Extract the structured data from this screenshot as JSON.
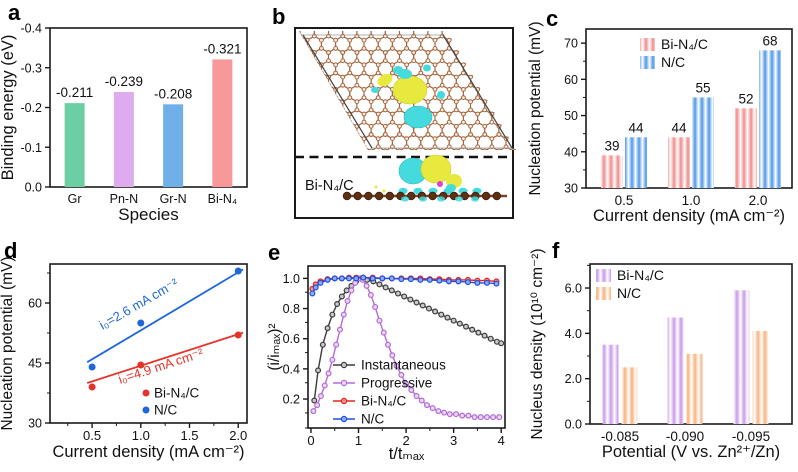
{
  "figure": {
    "panels": [
      {
        "id": "a",
        "letter": "a"
      },
      {
        "id": "b",
        "letter": "b"
      },
      {
        "id": "c",
        "letter": "c"
      },
      {
        "id": "d",
        "letter": "d"
      },
      {
        "id": "e",
        "letter": "e"
      },
      {
        "id": "f",
        "letter": "f"
      }
    ]
  },
  "structure_b": {
    "label": "Bi-N₄/C",
    "lattice_color": "#A5673F",
    "atom_fill": "#FBEDE2",
    "dark_atom": "#5C3014",
    "bond_color": "#7A4426",
    "blob_yellow": "#E8E93F",
    "blob_cyan": "#45DBDE",
    "blob_magenta": "#E040D0",
    "frame_color": "#1a1a1a"
  },
  "chart_data": [
    {
      "panel": "a",
      "type": "bar",
      "ylabel": "Binding energy (eV)",
      "xlabel": "Species",
      "categories": [
        "Gr",
        "Pn-N",
        "Gr-N",
        "Bi-N₄"
      ],
      "values": [
        -0.211,
        -0.239,
        -0.208,
        -0.321
      ],
      "value_labels": [
        "-0.211",
        "-0.239",
        "-0.208",
        "-0.321"
      ],
      "bar_colors": [
        "#6CCFA3",
        "#DDABEE",
        "#6FB0E8",
        "#F89898"
      ],
      "ylim": [
        0,
        -0.4
      ],
      "yticks": [
        0,
        -0.1,
        -0.2,
        -0.3,
        -0.4
      ],
      "ytick_labels": [
        "0.0",
        "-0.1",
        "-0.2",
        "-0.3",
        "-0.4"
      ],
      "grid": false
    },
    {
      "panel": "c",
      "type": "grouped-bar",
      "ylabel": "Nucleation potential (mV)",
      "xlabel": "Current density (mA cm⁻²)",
      "categories": [
        "0.5",
        "1.0",
        "2.0"
      ],
      "series": [
        {
          "name": "Bi-N₄/C",
          "color": "#F28B8B",
          "values": [
            39,
            44,
            52
          ]
        },
        {
          "name": "N/C",
          "color": "#4E97E8",
          "values": [
            44,
            55,
            68
          ]
        }
      ],
      "value_labels": true,
      "striped": true,
      "ylim": [
        30,
        73.9
      ],
      "yticks": [
        30,
        40,
        50,
        60,
        70
      ],
      "ytick_labels": [
        "30",
        "40",
        "50",
        "60",
        "70"
      ],
      "legend_position": "top-inside",
      "grid": false
    },
    {
      "panel": "d",
      "type": "scatter",
      "ylabel": "Nucleation potential (mV)",
      "xlabel": "Current density (mA cm⁻²)",
      "xlim": [
        0.068,
        2.09
      ],
      "ylim": [
        30,
        69.75
      ],
      "xticks": [
        0.5,
        1.0,
        1.5,
        2.0
      ],
      "xtick_labels": [
        "0.5",
        "1.0",
        "1.5",
        "2.0"
      ],
      "yticks": [
        30,
        45,
        60
      ],
      "ytick_labels": [
        "30",
        "45",
        "60"
      ],
      "series": [
        {
          "name": "Bi-N₄/C",
          "color": "#E6332A",
          "points": [
            [
              0.5,
              39
            ],
            [
              1.0,
              44.5
            ],
            [
              2.0,
              52
            ]
          ],
          "fit_line": [
            [
              0.45,
              40.0
            ],
            [
              2.05,
              52.6
            ]
          ],
          "annotation": {
            "text": "i₀=4.9 mA cm⁻²",
            "x": 1.22,
            "y": 43.2,
            "angle": -18
          }
        },
        {
          "name": "N/C",
          "color": "#1E66D9",
          "points": [
            [
              0.5,
              44
            ],
            [
              1.0,
              55
            ],
            [
              2.0,
              68
            ]
          ],
          "fit_line": [
            [
              0.45,
              45.2
            ],
            [
              2.05,
              68.4
            ]
          ],
          "annotation": {
            "text": "i₀=2.6 mA cm⁻²",
            "x": 1.0,
            "y": 58.8,
            "angle": -30
          }
        }
      ],
      "legend_position": "bottom-right-inside",
      "grid": false
    },
    {
      "panel": "e",
      "type": "line",
      "ylabel": "(i/iₘₐₓ)²",
      "xlabel": "t/tₘₐₓ",
      "xlim": [
        -0.062,
        4.08
      ],
      "ylim": [
        0.008,
        1.082
      ],
      "xticks": [
        0,
        1,
        2,
        3,
        4
      ],
      "xtick_labels": [
        "0",
        "1",
        "2",
        "3",
        "4"
      ],
      "yticks": [
        0.2,
        0.4,
        0.6,
        0.8,
        1.0
      ],
      "ytick_labels": [
        "0.2",
        "0.4",
        "0.6",
        "0.8",
        "1.0"
      ],
      "legend_position": "left-inside",
      "grid": false,
      "series": [
        {
          "name": "Instantaneous",
          "color": "#3C3C3C",
          "marker_fill": "#c9c9c9",
          "x": [
            0.07,
            0.15,
            0.25,
            0.35,
            0.45,
            0.55,
            0.65,
            0.75,
            0.85,
            0.95,
            1.05,
            1.18,
            1.31,
            1.44,
            1.57,
            1.7,
            1.83,
            1.96,
            2.09,
            2.22,
            2.35,
            2.48,
            2.61,
            2.74,
            2.87,
            3.0,
            3.13,
            3.26,
            3.39,
            3.52,
            3.65,
            3.78,
            3.91,
            4.0
          ],
          "y": [
            0.19,
            0.39,
            0.56,
            0.67,
            0.76,
            0.83,
            0.88,
            0.92,
            0.95,
            0.98,
            1.0,
            0.99,
            0.98,
            0.96,
            0.94,
            0.92,
            0.9,
            0.88,
            0.86,
            0.84,
            0.82,
            0.8,
            0.78,
            0.76,
            0.74,
            0.72,
            0.7,
            0.68,
            0.66,
            0.64,
            0.62,
            0.6,
            0.58,
            0.57
          ]
        },
        {
          "name": "Progressive",
          "color": "#B36CD6",
          "marker_fill": "#ecd4f7",
          "x": [
            0.05,
            0.13,
            0.21,
            0.29,
            0.37,
            0.45,
            0.53,
            0.61,
            0.69,
            0.77,
            0.85,
            0.93,
            1.01,
            1.09,
            1.17,
            1.26,
            1.35,
            1.44,
            1.53,
            1.62,
            1.71,
            1.8,
            1.9,
            2.0,
            2.11,
            2.22,
            2.33,
            2.44,
            2.56,
            2.68,
            2.8,
            2.92,
            3.05,
            3.18,
            3.31,
            3.44,
            3.57,
            3.7,
            3.83,
            3.96
          ],
          "y": [
            0.12,
            0.16,
            0.22,
            0.29,
            0.37,
            0.46,
            0.56,
            0.66,
            0.76,
            0.85,
            0.92,
            0.97,
            1.0,
            0.99,
            0.95,
            0.89,
            0.81,
            0.72,
            0.64,
            0.56,
            0.49,
            0.42,
            0.36,
            0.3,
            0.26,
            0.22,
            0.19,
            0.16,
            0.14,
            0.12,
            0.11,
            0.1,
            0.1,
            0.09,
            0.09,
            0.08,
            0.08,
            0.08,
            0.08,
            0.08
          ]
        },
        {
          "name": "Bi-N₄/C",
          "color": "#E8231E",
          "marker_fill": "#f4938f",
          "x": [
            0.03,
            0.1,
            0.2,
            0.35,
            0.5,
            0.65,
            0.8,
            0.95,
            1.1,
            1.3,
            1.5,
            1.7,
            1.9,
            2.1,
            2.3,
            2.5,
            2.7,
            2.9,
            3.1,
            3.3,
            3.5,
            3.7,
            3.9
          ],
          "y": [
            0.93,
            0.96,
            0.98,
            0.995,
            1.0,
            1.0,
            1.005,
            1.005,
            1.005,
            1.005,
            1.0,
            1.0,
            1.0,
            1.0,
            1.0,
            0.995,
            0.995,
            0.99,
            0.99,
            0.99,
            0.985,
            0.985,
            0.98
          ]
        },
        {
          "name": "N/C",
          "color": "#1B50E3",
          "marker_fill": "#8fa9f0",
          "x": [
            0.03,
            0.1,
            0.2,
            0.35,
            0.5,
            0.65,
            0.8,
            0.95,
            1.1,
            1.3,
            1.5,
            1.7,
            1.9,
            2.1,
            2.3,
            2.5,
            2.7,
            2.9,
            3.1,
            3.3,
            3.5,
            3.7,
            3.9
          ],
          "y": [
            0.9,
            0.94,
            0.97,
            0.99,
            1.0,
            1.0,
            1.0,
            1.0,
            1.005,
            1.0,
            1.0,
            1.0,
            0.995,
            0.995,
            0.99,
            0.99,
            0.985,
            0.98,
            0.98,
            0.975,
            0.97,
            0.97,
            0.965
          ]
        }
      ]
    },
    {
      "panel": "f",
      "type": "grouped-bar",
      "ylabel": "Nucleus density (10¹⁰ cm⁻²)",
      "xlabel": "Potential (V vs. Zn²⁺/Zn)",
      "categories": [
        "-0.085",
        "-0.090",
        "-0.095"
      ],
      "series": [
        {
          "name": "Bi-N₄/C",
          "color": "#C99BE8",
          "values": [
            3.5,
            4.7,
            5.9
          ]
        },
        {
          "name": "N/C",
          "color": "#F7B27E",
          "values": [
            2.5,
            3.1,
            4.1
          ]
        }
      ],
      "value_labels": false,
      "striped": true,
      "ylim": [
        0,
        7.06
      ],
      "yticks": [
        0,
        2,
        4,
        6
      ],
      "ytick_labels": [
        "0.0",
        "2.0",
        "4.0",
        "6.0"
      ],
      "legend_position": "top-left-inside",
      "grid": false
    }
  ]
}
